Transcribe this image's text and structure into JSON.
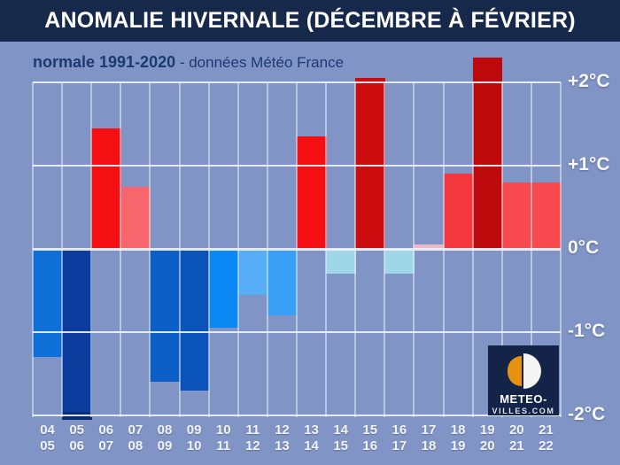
{
  "header": {
    "title": "ANOMALIE HIVERNALE (DÉCEMBRE À FÉVRIER)"
  },
  "subtitle": {
    "bold": "normale 1991-2020",
    "rest": " - données Météo France"
  },
  "logo": {
    "line1": "METEO-",
    "line2": "VILLES.COM"
  },
  "colors": {
    "background": "#8094c5",
    "titlebar": "#16294b",
    "subtitle_text": "#1c3a72",
    "grid": "#eef1f8",
    "axis_label": "#f7f9fd",
    "logo_bg": "#132448",
    "logo_orange": "#e6920f"
  },
  "chart_data": {
    "type": "bar",
    "title": "ANOMALIE HIVERNALE (DÉCEMBRE À FÉVRIER)",
    "note": "normale 1991-2020 - données Météo France",
    "unit": "°C",
    "ylim": [
      -2.1,
      2.35
    ],
    "grid": true,
    "legend": "none",
    "yticks": [
      {
        "value": 2,
        "label": "+2°C"
      },
      {
        "value": 1,
        "label": "+1°C"
      },
      {
        "value": 0,
        "label": "0°C"
      },
      {
        "value": -1,
        "label": "-1°C"
      },
      {
        "value": -2,
        "label": "-2°C"
      }
    ],
    "categories": [
      {
        "top": "04",
        "bottom": "05"
      },
      {
        "top": "05",
        "bottom": "06"
      },
      {
        "top": "06",
        "bottom": "07"
      },
      {
        "top": "07",
        "bottom": "08"
      },
      {
        "top": "08",
        "bottom": "09"
      },
      {
        "top": "09",
        "bottom": "10"
      },
      {
        "top": "10",
        "bottom": "11"
      },
      {
        "top": "11",
        "bottom": "12"
      },
      {
        "top": "12",
        "bottom": "13"
      },
      {
        "top": "13",
        "bottom": "14"
      },
      {
        "top": "14",
        "bottom": "15"
      },
      {
        "top": "15",
        "bottom": "16"
      },
      {
        "top": "16",
        "bottom": "17"
      },
      {
        "top": "17",
        "bottom": "18"
      },
      {
        "top": "18",
        "bottom": "19"
      },
      {
        "top": "19",
        "bottom": "20"
      },
      {
        "top": "20",
        "bottom": "21"
      },
      {
        "top": "21",
        "bottom": "22"
      }
    ],
    "values": [
      -1.3,
      -2.05,
      1.45,
      0.75,
      -1.6,
      -1.7,
      -0.95,
      -0.55,
      -0.8,
      1.35,
      -0.3,
      2.05,
      -0.3,
      0.05,
      0.9,
      2.3,
      0.8,
      0.8
    ],
    "colors": [
      "#0e6fd9",
      "#0c3c9e",
      "#f50f12",
      "#f7666d",
      "#0d5fc8",
      "#0a53bb",
      "#0a89f4",
      "#58adf7",
      "#38a0f5",
      "#f50f12",
      "#a0d7e8",
      "#cc0c0f",
      "#a0d7e8",
      "#edb9c6",
      "#f5383e",
      "#bf0a0d",
      "#f94a50",
      "#f94a50"
    ],
    "tip_colors": [
      null,
      "#082b70",
      null,
      null,
      null,
      null,
      null,
      null,
      null,
      null,
      null,
      null,
      null,
      null,
      null,
      null,
      null,
      null
    ]
  }
}
